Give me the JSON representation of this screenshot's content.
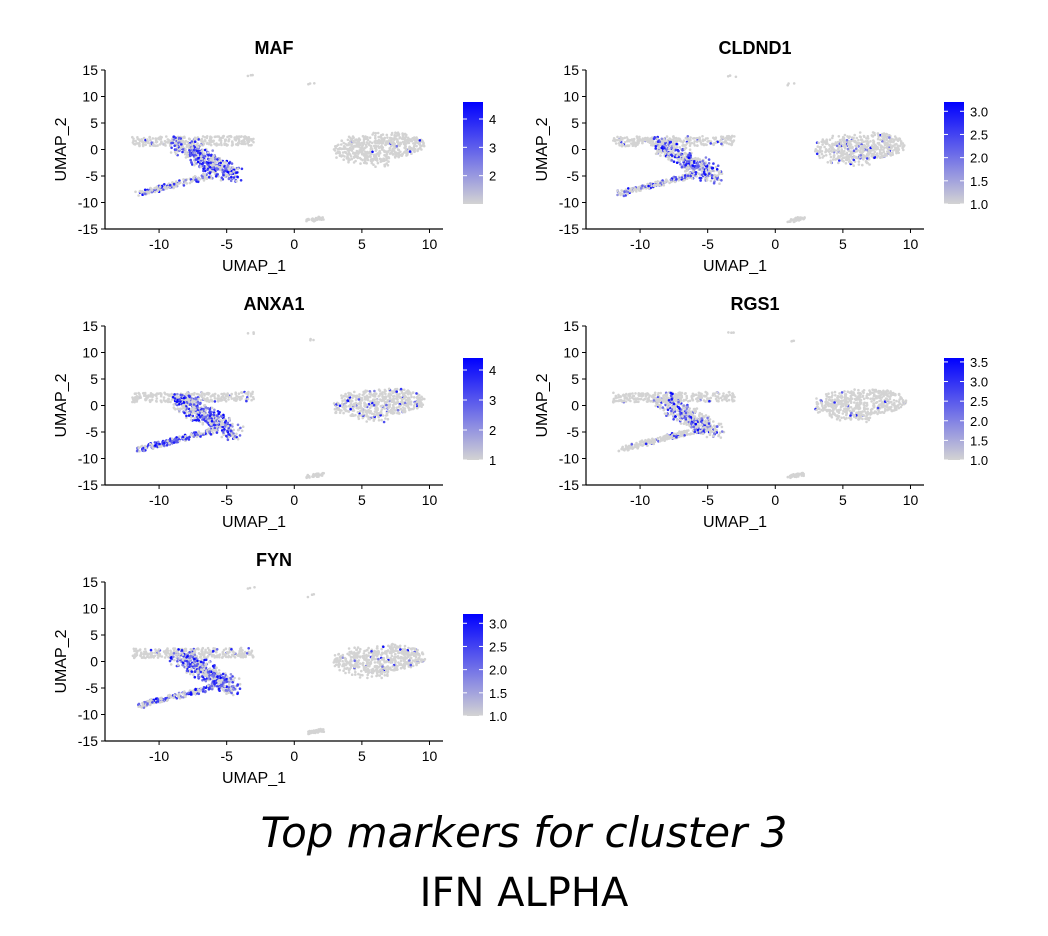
{
  "caption": {
    "title": "Top markers for cluster 3",
    "subtitle": "IFN ALPHA"
  },
  "colors": {
    "low": "#d3d3d3",
    "high": "#0000ff"
  },
  "chart_data": [
    {
      "type": "scatter",
      "title": "MAF",
      "xlabel": "UMAP_1",
      "ylabel": "UMAP_2",
      "xlim": [
        -14,
        11
      ],
      "ylim": [
        -15,
        15
      ],
      "xticks": [
        "-10",
        "-5",
        "0",
        "5",
        "10"
      ],
      "yticks": [
        "15",
        "10",
        "5",
        "0",
        "-5",
        "-10",
        "-15"
      ],
      "legend": {
        "position": "right",
        "range": [
          1.0,
          4.6
        ],
        "ticks": [
          "4",
          "3",
          "2"
        ]
      },
      "expression_by_region": {
        "left_cluster": 0.6,
        "lower_arm": 0.4,
        "upper_arm": 0.05,
        "right_cluster": 0.02
      }
    },
    {
      "type": "scatter",
      "title": "CLDND1",
      "xlabel": "UMAP_1",
      "ylabel": "UMAP_2",
      "xlim": [
        -14,
        11
      ],
      "ylim": [
        -15,
        15
      ],
      "xticks": [
        "-10",
        "-5",
        "0",
        "5",
        "10"
      ],
      "yticks": [
        "15",
        "10",
        "5",
        "0",
        "-5",
        "-10",
        "-15"
      ],
      "legend": {
        "position": "right",
        "range": [
          1.0,
          3.2
        ],
        "ticks": [
          "3.0",
          "2.5",
          "2.0",
          "1.5",
          "1.0"
        ]
      },
      "expression_by_region": {
        "left_cluster": 0.5,
        "lower_arm": 0.3,
        "upper_arm": 0.05,
        "right_cluster": 0.08
      }
    },
    {
      "type": "scatter",
      "title": "ANXA1",
      "xlabel": "UMAP_1",
      "ylabel": "UMAP_2",
      "xlim": [
        -14,
        11
      ],
      "ylim": [
        -15,
        15
      ],
      "xticks": [
        "-10",
        "-5",
        "0",
        "5",
        "10"
      ],
      "yticks": [
        "15",
        "10",
        "5",
        "0",
        "-5",
        "-10",
        "-15"
      ],
      "legend": {
        "position": "right",
        "range": [
          1.0,
          4.4
        ],
        "ticks": [
          "4",
          "3",
          "2",
          "1"
        ]
      },
      "expression_by_region": {
        "left_cluster": 0.55,
        "lower_arm": 0.65,
        "upper_arm": 0.05,
        "right_cluster": 0.1
      }
    },
    {
      "type": "scatter",
      "title": "RGS1",
      "xlabel": "UMAP_1",
      "ylabel": "UMAP_2",
      "xlim": [
        -14,
        11
      ],
      "ylim": [
        -15,
        15
      ],
      "xticks": [
        "-10",
        "-5",
        "0",
        "5",
        "10"
      ],
      "yticks": [
        "15",
        "10",
        "5",
        "0",
        "-5",
        "-10",
        "-15"
      ],
      "legend": {
        "position": "right",
        "range": [
          1.0,
          3.6
        ],
        "ticks": [
          "3.5",
          "3.0",
          "2.5",
          "2.0",
          "1.5",
          "1.0"
        ]
      },
      "expression_by_region": {
        "left_cluster": 0.35,
        "lower_arm": 0.15,
        "upper_arm": 0.03,
        "right_cluster": 0.03
      }
    },
    {
      "type": "scatter",
      "title": "FYN",
      "xlabel": "UMAP_1",
      "ylabel": "UMAP_2",
      "xlim": [
        -14,
        11
      ],
      "ylim": [
        -15,
        15
      ],
      "xticks": [
        "-10",
        "-5",
        "0",
        "5",
        "10"
      ],
      "yticks": [
        "15",
        "10",
        "5",
        "0",
        "-5",
        "-10",
        "-15"
      ],
      "legend": {
        "position": "right",
        "range": [
          1.0,
          3.2
        ],
        "ticks": [
          "3.0",
          "2.5",
          "2.0",
          "1.5",
          "1.0"
        ]
      },
      "expression_by_region": {
        "left_cluster": 0.6,
        "lower_arm": 0.5,
        "upper_arm": 0.06,
        "right_cluster": 0.04
      }
    }
  ]
}
